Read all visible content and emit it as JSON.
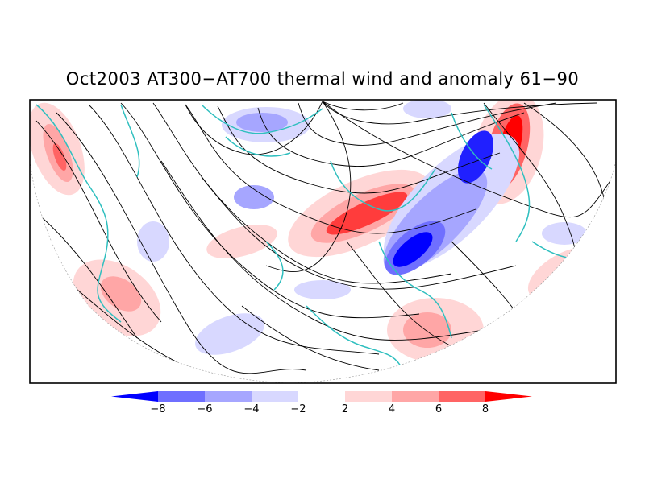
{
  "title": "Oct2003 AT300−AT700 thermal wind and anomaly 61−90",
  "colorbar": {
    "tick_labels": [
      "−8",
      "−6",
      "−4",
      "−2",
      "2",
      "4",
      "6",
      "8"
    ],
    "colors": [
      "#0000ff",
      "#6f6fff",
      "#a6a6ff",
      "#d8d8ff",
      "#ffffff",
      "#ffd6d6",
      "#ffa6a6",
      "#ff6464",
      "#ff0000"
    ]
  },
  "colors": {
    "coastline": "#2fbfbf",
    "streamline": "#000000",
    "frame": "#000000"
  }
}
